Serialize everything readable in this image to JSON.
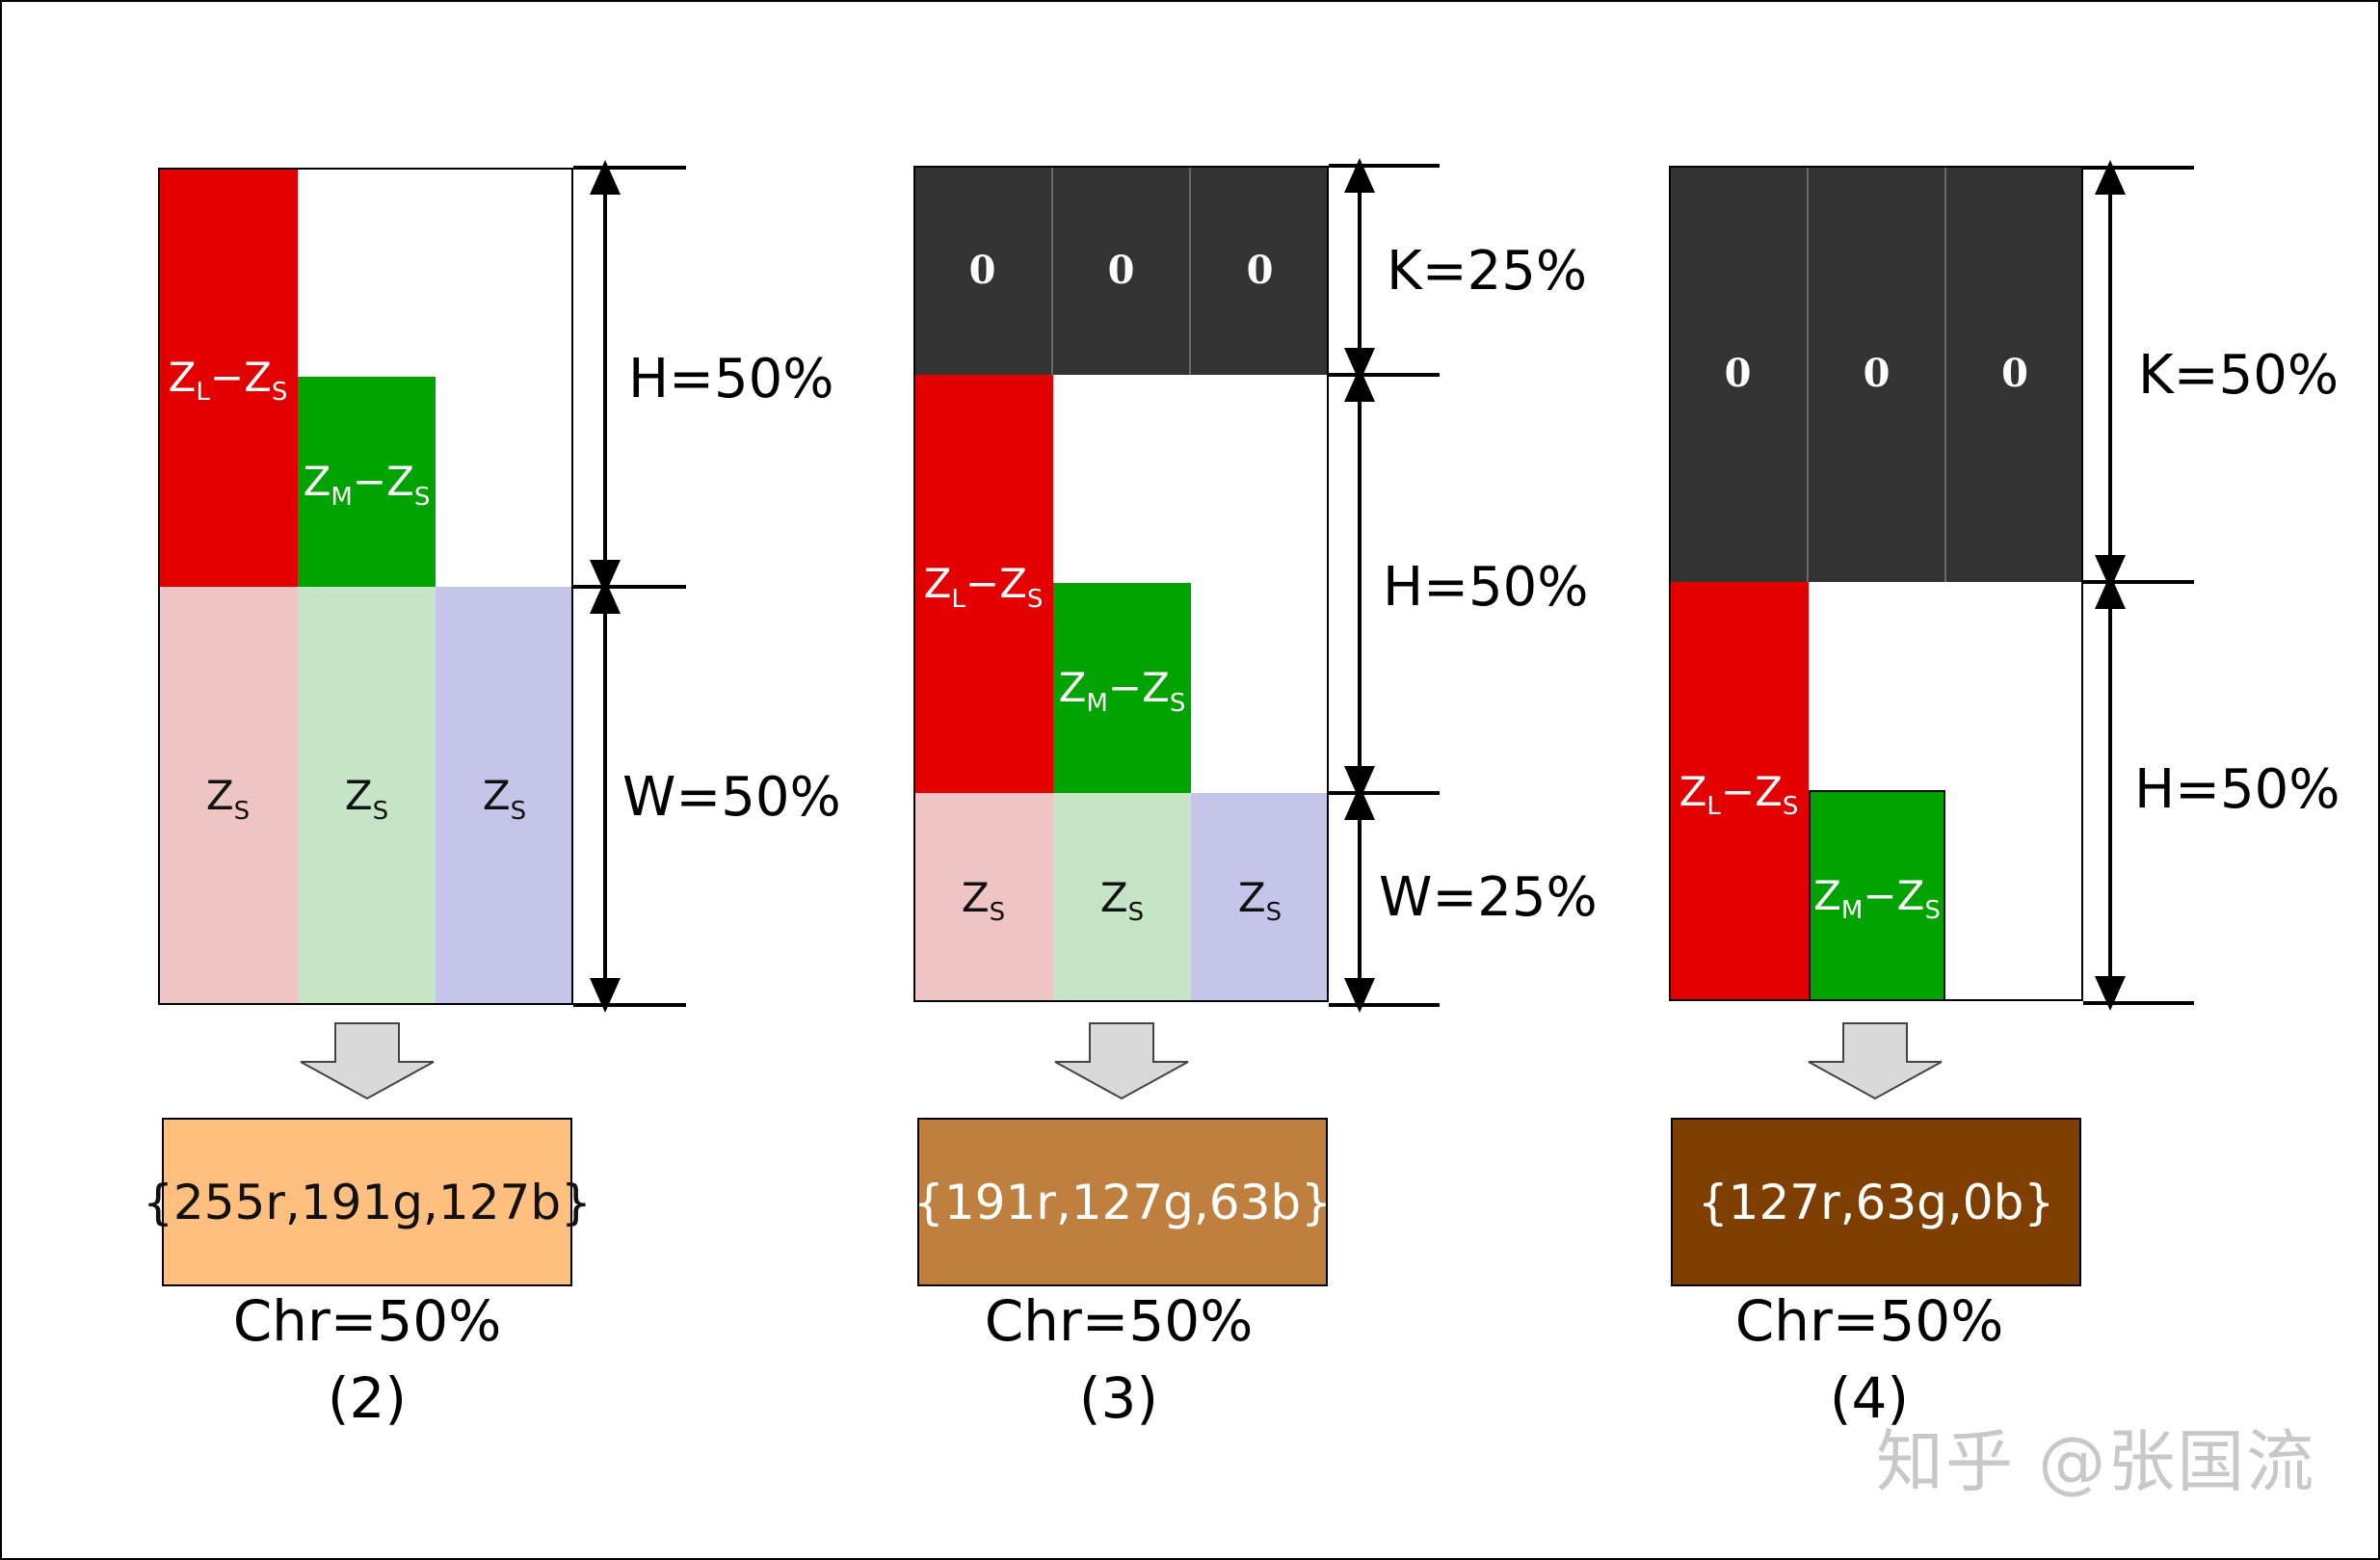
{
  "panels": [
    {
      "kbox": null,
      "zl_label": {
        "main": "Z",
        "sub_l": "L",
        "mid": "−Z",
        "sub_r": "S"
      },
      "zm_label": {
        "main": "Z",
        "sub_l": "M",
        "mid": "−Z",
        "sub_r": "S"
      },
      "zs_label": {
        "main": "Z",
        "sub": "S"
      },
      "dims": [
        "H=50%",
        "W=50%"
      ],
      "result": {
        "text": "{255r,191g,127b}",
        "color": "#ffbf7f",
        "text_color": "#111111"
      },
      "chr": "Chr=50%",
      "caption": "(2)"
    },
    {
      "kbox": [
        "0",
        "0",
        "0"
      ],
      "zl_label": {
        "main": "Z",
        "sub_l": "L",
        "mid": "−Z",
        "sub_r": "S"
      },
      "zm_label": {
        "main": "Z",
        "sub_l": "M",
        "mid": "−Z",
        "sub_r": "S"
      },
      "zs_label": {
        "main": "Z",
        "sub": "S"
      },
      "dims": [
        "K=25%",
        "H=50%",
        "W=25%"
      ],
      "result": {
        "text": "{191r,127g,63b}",
        "color": "#bf7f3f",
        "text_color": "#ffffff"
      },
      "chr": "Chr=50%",
      "caption": "(3)"
    },
    {
      "kbox": [
        "0",
        "0",
        "0"
      ],
      "zl_label": {
        "main": "Z",
        "sub_l": "L",
        "mid": "−Z",
        "sub_r": "S"
      },
      "zm_label": {
        "main": "Z",
        "sub_l": "M",
        "mid": "−Z",
        "sub_r": "S"
      },
      "zs_label": null,
      "dims": [
        "K=50%",
        "H=50%"
      ],
      "result": {
        "text": "{127r,63g,0b}",
        "color": "#7f3f00",
        "text_color": "#ffffff"
      },
      "chr": "Chr=50%",
      "caption": "(4)"
    }
  ],
  "watermark": "知乎 @张国流",
  "colors": {
    "black_k": "#333333",
    "red": "#e30000",
    "green": "#00a300",
    "pink": "#efc4c4",
    "mint": "#c5e5c6",
    "lavender": "#c4c5e9",
    "arrow_fill": "#d9d9d9"
  }
}
